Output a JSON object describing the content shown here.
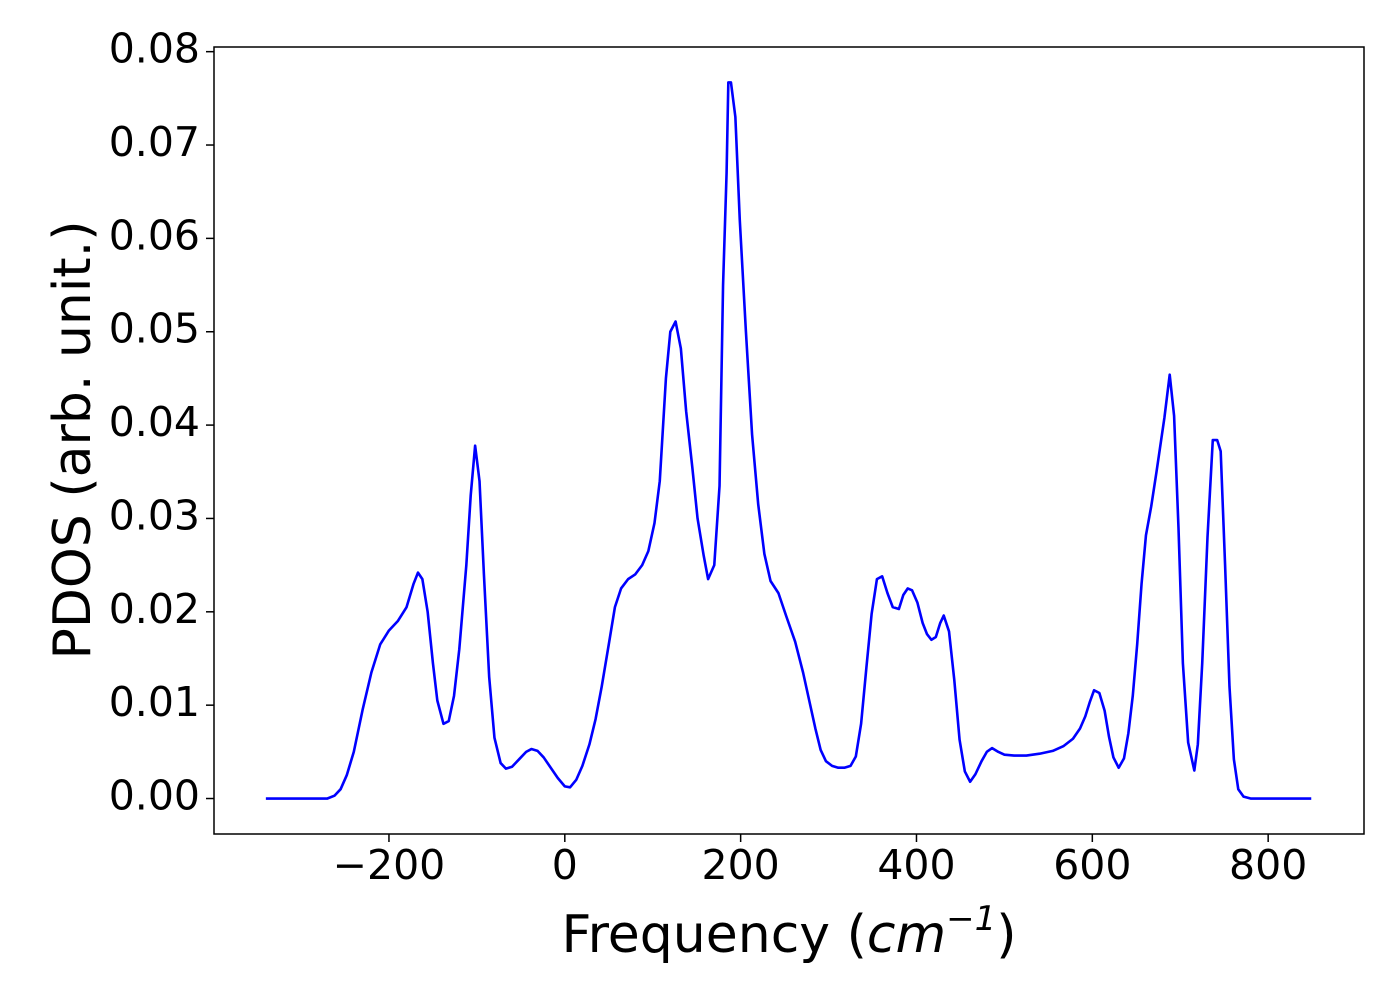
{
  "chart_data": {
    "type": "line",
    "xlabel": {
      "prefix": "Frequency (",
      "unit": "cm",
      "exponent": "−1",
      "suffix": ")"
    },
    "ylabel": "PDOS (arb. unit.)",
    "x": [
      -340,
      -270,
      -262,
      -255,
      -248,
      -240,
      -230,
      -220,
      -210,
      -200,
      -190,
      -180,
      -172,
      -167,
      -162,
      -156,
      -150,
      -145,
      -138,
      -132,
      -126,
      -120,
      -112,
      -107,
      -102,
      -97,
      -92,
      -86,
      -80,
      -73,
      -67,
      -60,
      -52,
      -44,
      -38,
      -31,
      -24,
      -16,
      -8,
      0,
      6,
      13,
      20,
      28,
      35,
      42,
      50,
      57,
      64,
      72,
      80,
      88,
      95,
      102,
      108,
      115,
      120,
      126,
      132,
      138,
      145,
      151,
      158,
      163,
      170,
      176,
      180,
      184,
      186,
      189,
      194,
      199,
      206,
      213,
      220,
      227,
      234,
      243,
      252,
      262,
      271,
      278,
      285,
      291,
      297,
      304,
      311,
      318,
      325,
      331,
      337,
      343,
      349,
      355,
      361,
      367,
      373,
      380,
      385,
      390,
      395,
      401,
      407,
      412,
      417,
      422,
      427,
      431,
      437,
      443,
      449,
      455,
      461,
      467,
      474,
      480,
      486,
      493,
      500,
      511,
      525,
      540,
      555,
      567,
      578,
      586,
      592,
      597,
      602,
      608,
      614,
      619,
      624,
      630,
      636,
      641,
      646,
      651,
      656,
      661,
      667,
      673,
      682,
      688,
      693,
      698,
      703,
      709,
      716,
      720,
      725,
      731,
      737,
      742,
      746,
      751,
      756,
      761,
      766,
      772,
      780,
      849
    ],
    "series": [
      {
        "color": "#0000ff",
        "values": [
          0,
          0,
          0.0003,
          0.001,
          0.0025,
          0.005,
          0.0095,
          0.0135,
          0.0165,
          0.018,
          0.019,
          0.0205,
          0.023,
          0.0242,
          0.0235,
          0.02,
          0.0145,
          0.0105,
          0.008,
          0.0083,
          0.011,
          0.016,
          0.025,
          0.0325,
          0.0378,
          0.034,
          0.024,
          0.013,
          0.0065,
          0.0038,
          0.0032,
          0.0034,
          0.0042,
          0.005,
          0.0053,
          0.0051,
          0.0044,
          0.0033,
          0.0022,
          0.0013,
          0.0012,
          0.002,
          0.0035,
          0.0058,
          0.0085,
          0.012,
          0.0165,
          0.0205,
          0.0225,
          0.0235,
          0.024,
          0.025,
          0.0265,
          0.0295,
          0.034,
          0.045,
          0.05,
          0.0511,
          0.0482,
          0.0415,
          0.0355,
          0.03,
          0.026,
          0.0235,
          0.025,
          0.0335,
          0.055,
          0.067,
          0.0767,
          0.0767,
          0.073,
          0.062,
          0.05,
          0.039,
          0.0315,
          0.0262,
          0.0233,
          0.022,
          0.0195,
          0.0168,
          0.0135,
          0.0105,
          0.0075,
          0.0052,
          0.004,
          0.0035,
          0.0033,
          0.0033,
          0.0035,
          0.0045,
          0.008,
          0.014,
          0.0198,
          0.0235,
          0.0238,
          0.022,
          0.0205,
          0.0203,
          0.0218,
          0.0225,
          0.0223,
          0.021,
          0.0188,
          0.0176,
          0.017,
          0.0173,
          0.0188,
          0.0196,
          0.0179,
          0.0127,
          0.0063,
          0.0029,
          0.0018,
          0.0026,
          0.004,
          0.005,
          0.0054,
          0.005,
          0.0047,
          0.0046,
          0.0046,
          0.0048,
          0.0051,
          0.0056,
          0.0064,
          0.0075,
          0.0088,
          0.0103,
          0.0116,
          0.0113,
          0.0094,
          0.0066,
          0.0044,
          0.0033,
          0.0043,
          0.007,
          0.011,
          0.0165,
          0.023,
          0.0282,
          0.0313,
          0.035,
          0.0408,
          0.0454,
          0.041,
          0.029,
          0.0145,
          0.006,
          0.003,
          0.0058,
          0.0145,
          0.028,
          0.0384,
          0.0384,
          0.0372,
          0.025,
          0.012,
          0.0042,
          0.001,
          0.0002,
          0,
          0
        ]
      }
    ],
    "xlim": [
      -399,
      909
    ],
    "ylim": [
      -0.0038,
      0.0805
    ],
    "xticks": [
      {
        "value": -200,
        "label": "−200"
      },
      0,
      200,
      400,
      600,
      800
    ],
    "yticks": [
      {
        "value": 0,
        "label": "0.00"
      },
      0.01,
      0.02,
      0.03,
      0.04,
      0.05,
      0.06,
      0.07,
      0.08
    ]
  }
}
